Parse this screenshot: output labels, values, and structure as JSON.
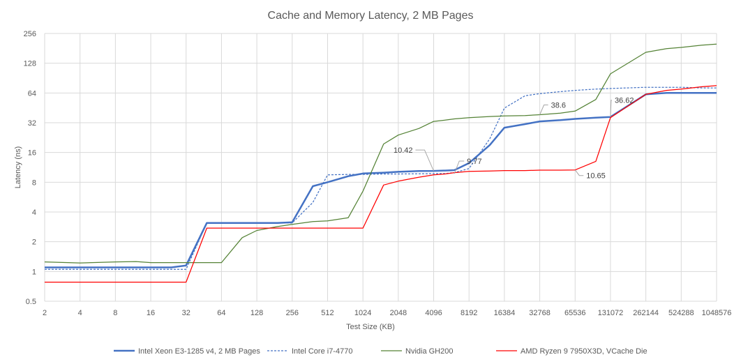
{
  "chart_data": {
    "type": "line",
    "title": "Cache and Memory Latency, 2 MB Pages",
    "xlabel": "Test Size (KB)",
    "ylabel": "Latency (ns)",
    "x_scale": "log2",
    "y_scale": "log2",
    "ylim": [
      0.5,
      256
    ],
    "grid": true,
    "legend_position": "bottom",
    "x_ticks": [
      "2",
      "4",
      "8",
      "16",
      "32",
      "64",
      "128",
      "256",
      "512",
      "1024",
      "2048",
      "4096",
      "8192",
      "16384",
      "32768",
      "65536",
      "131072",
      "262144",
      "524288",
      "1048576"
    ],
    "y_ticks": [
      "0.5",
      "1",
      "2",
      "4",
      "8",
      "16",
      "32",
      "64",
      "128",
      "256"
    ],
    "x": [
      2,
      4,
      8,
      12,
      16,
      24,
      32,
      48,
      64,
      96,
      128,
      192,
      256,
      384,
      512,
      768,
      1024,
      1536,
      2048,
      3072,
      4096,
      5120,
      6144,
      8192,
      12288,
      16384,
      24576,
      32768,
      49152,
      65536,
      98304,
      131072,
      262144,
      393216,
      524288,
      786432,
      1048576
    ],
    "series": [
      {
        "name": "Intel Xeon E3-1285 v4, 2 MB Pages",
        "color": "#4472C4",
        "style": "solid-thick",
        "values": [
          1.1,
          1.1,
          1.1,
          1.1,
          1.1,
          1.1,
          1.15,
          3.1,
          3.1,
          3.1,
          3.1,
          3.1,
          3.15,
          7.3,
          8.0,
          9.2,
          9.8,
          10.0,
          10.2,
          10.4,
          10.42,
          10.5,
          10.6,
          12.5,
          19.0,
          28.5,
          31.0,
          33.0,
          34.0,
          35.0,
          36.0,
          36.62,
          62.0,
          64.0,
          64.0,
          64.0,
          64.0
        ]
      },
      {
        "name": "Intel Core i7-4770",
        "color": "#4472C4",
        "style": "dashed",
        "values": [
          1.05,
          1.05,
          1.05,
          1.05,
          1.05,
          1.05,
          1.05,
          3.1,
          3.1,
          3.1,
          3.1,
          3.1,
          3.1,
          5.0,
          9.5,
          9.6,
          9.6,
          9.7,
          9.7,
          9.75,
          9.77,
          9.8,
          10.0,
          11.0,
          22.0,
          45.0,
          60.0,
          63.0,
          66.0,
          68.0,
          70.0,
          71.0,
          73.0,
          73.0,
          73.0,
          72.0,
          72.0
        ]
      },
      {
        "name": "Nvidia GH200",
        "color": "#548235",
        "style": "solid",
        "values": [
          1.25,
          1.22,
          1.25,
          1.26,
          1.23,
          1.23,
          1.23,
          1.23,
          1.23,
          2.2,
          2.6,
          2.85,
          3.0,
          3.2,
          3.25,
          3.5,
          6.5,
          19.5,
          24.0,
          28.0,
          33.0,
          34.0,
          35.0,
          36.0,
          37.0,
          37.5,
          37.8,
          38.6,
          40.0,
          42.0,
          55.0,
          100.0,
          165.0,
          180.0,
          185.0,
          195.0,
          200.0
        ]
      },
      {
        "name": "AMD Ryzen 9 7950X3D, VCache Die",
        "color": "#FF0000",
        "style": "solid",
        "values": [
          0.78,
          0.78,
          0.78,
          0.78,
          0.78,
          0.78,
          0.78,
          2.75,
          2.75,
          2.75,
          2.75,
          2.75,
          2.75,
          2.75,
          2.75,
          2.75,
          2.75,
          7.5,
          8.2,
          9.0,
          9.5,
          9.7,
          10.0,
          10.3,
          10.4,
          10.5,
          10.5,
          10.6,
          10.6,
          10.65,
          13.0,
          36.0,
          62.0,
          68.0,
          70.0,
          74.0,
          76.0
        ]
      }
    ],
    "annotations": [
      {
        "text": "10.42",
        "x": 4096,
        "y": 10.42
      },
      {
        "text": "9.77",
        "x": 6144,
        "y": 9.77
      },
      {
        "text": "38.6",
        "x": 32768,
        "y": 38.6
      },
      {
        "text": "36.62",
        "x": 131072,
        "y": 36.62
      },
      {
        "text": "10.65",
        "x": 65536,
        "y": 10.65
      }
    ]
  }
}
